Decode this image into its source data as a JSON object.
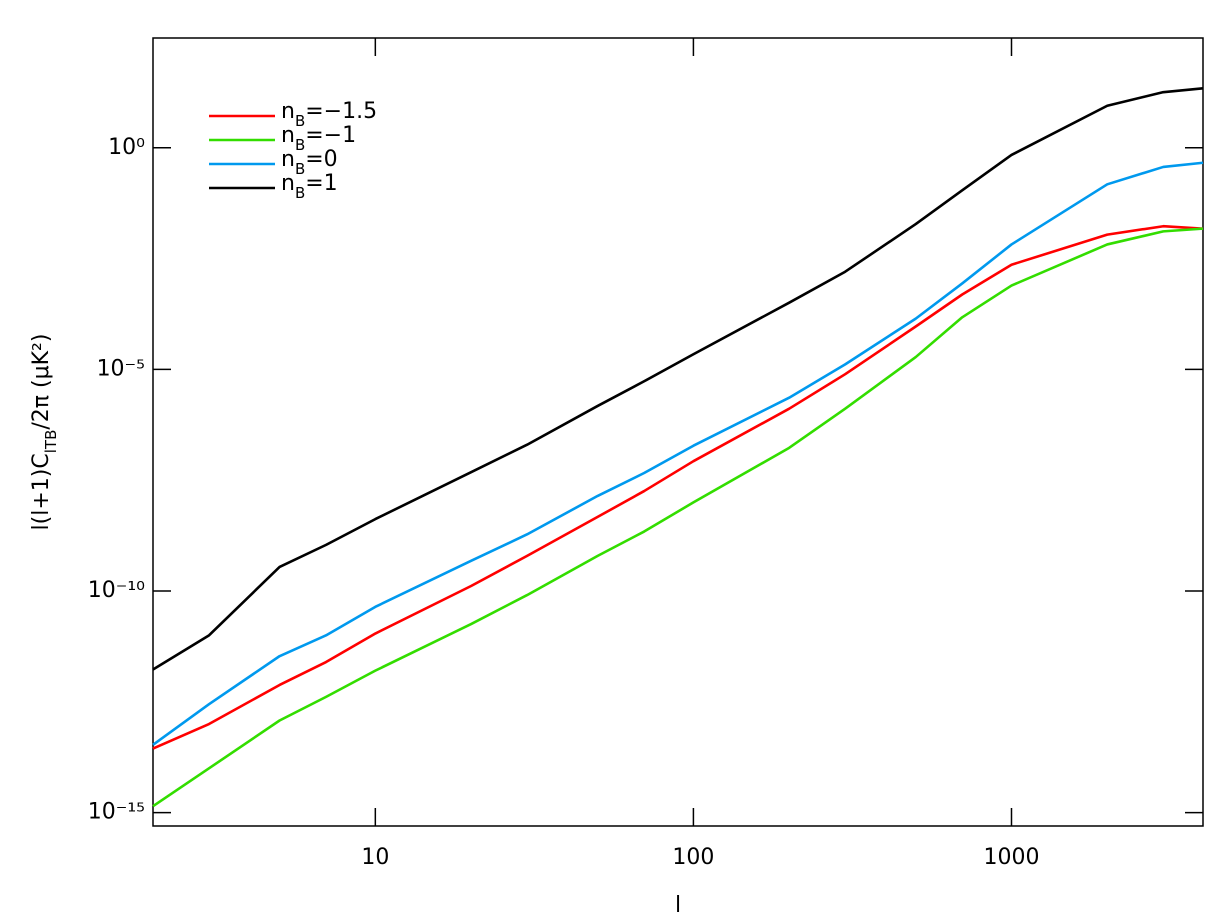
{
  "chart_data": {
    "type": "line",
    "xlabel": "l",
    "ylabel": "l(l+1)ClTB/2π (μK²)",
    "xscale": "log",
    "yscale": "log",
    "xlim": [
      2,
      4000
    ],
    "ylim": [
      5e-16,
      300
    ],
    "xticks": [
      10,
      100,
      1000
    ],
    "yticks": [
      {
        "value": 1e-15,
        "label": "10⁻¹⁵"
      },
      {
        "value": 1e-10,
        "label": "10⁻¹⁰"
      },
      {
        "value": 1e-05,
        "label": "10⁻⁵"
      },
      {
        "value": 1,
        "label": "10⁰"
      }
    ],
    "legend": "upper-left",
    "x": [
      2,
      3,
      5,
      7,
      10,
      20,
      30,
      50,
      70,
      100,
      200,
      300,
      500,
      700,
      1000,
      2000,
      3000,
      4000
    ],
    "series": [
      {
        "name": "nB=−1.5",
        "color": "#ff0000",
        "values": [
          2.8e-14,
          1e-13,
          7.6e-13,
          2.5e-12,
          1.1e-11,
          1.3e-10,
          6.2e-10,
          4.7e-09,
          1.8e-08,
          8.5e-08,
          1.3e-06,
          7.8e-06,
          9.3e-05,
          0.00049,
          0.0023,
          0.011,
          0.017,
          0.015
        ]
      },
      {
        "name": "nB=−1",
        "color": "#33dd00",
        "values": [
          1.4e-15,
          1e-14,
          1.2e-13,
          4.1e-13,
          1.6e-12,
          1.8e-11,
          8.1e-11,
          6.2e-10,
          2.2e-09,
          1e-08,
          1.7e-07,
          1.3e-06,
          1.9e-05,
          0.00015,
          0.00078,
          0.0066,
          0.013,
          0.015
        ]
      },
      {
        "name": "nB=0",
        "color": "#0099ee",
        "values": [
          3.4e-14,
          2.8e-13,
          3.4e-12,
          1e-11,
          4.4e-11,
          4.8e-10,
          1.9e-09,
          1.4e-08,
          4.6e-08,
          1.9e-07,
          2.3e-06,
          1.3e-05,
          0.00014,
          0.00087,
          0.0066,
          0.15,
          0.37,
          0.46
        ]
      },
      {
        "name": "nB=1",
        "color": "#000000",
        "values": [
          1.7e-12,
          1e-11,
          3.5e-10,
          1.1e-09,
          4.2e-09,
          4.8e-08,
          2e-07,
          1.5e-06,
          5.4e-06,
          2.2e-05,
          0.00032,
          0.0016,
          0.019,
          0.11,
          0.69,
          8.9,
          18,
          22
        ]
      }
    ]
  }
}
